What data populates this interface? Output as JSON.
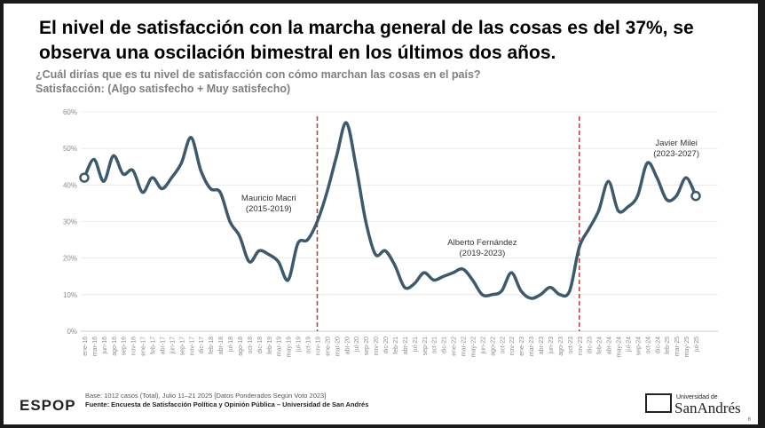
{
  "chart_data": {
    "type": "line",
    "title": [
      "El nivel de satisfacción con la marcha general de las cosas es del 37%, se",
      "observa una oscilación bimestral en los últimos dos años."
    ],
    "subtitle": [
      "¿Cuál dirías que es tu nivel de satisfacción con cómo marchan las cosas en el país?",
      "Satisfacción: (Algo satisfecho + Muy satisfecho)"
    ],
    "categories": [
      "ene-16",
      "mar-16",
      "jun-16",
      "ago-16",
      "sep-16",
      "nov-16",
      "ene-17",
      "feb-17",
      "abr-17",
      "jun-17",
      "sep-17",
      "nov-17",
      "dic-17",
      "feb-18",
      "abr-18",
      "jul-18",
      "ago-18",
      "oct-18",
      "dic-18",
      "feb-19",
      "mar-19",
      "may-19",
      "jul-19",
      "oct-19",
      "nov-19",
      "ene-20",
      "mar-20",
      "abr-20",
      "jul-20",
      "sep-20",
      "nov-20",
      "dic-20",
      "feb-21",
      "abr-21",
      "jul-21",
      "sep-21",
      "oct-21",
      "dic-21",
      "ene-22",
      "mar-22",
      "may-22",
      "jun-22",
      "ago-22",
      "oct-22",
      "nov-22",
      "ene-23",
      "mar-23",
      "abr-23",
      "jun-23",
      "ago-23",
      "oct-23",
      "nov-23",
      "dic-23",
      "feb-24",
      "abr-24",
      "may-24",
      "jul-24",
      "sep-24",
      "oct-24",
      "dic-24",
      "feb-25",
      "mar-25",
      "may-25",
      "jul-25"
    ],
    "series": [
      {
        "name": "Satisfacción",
        "color": "#3d5a6c",
        "values": [
          42,
          47,
          41,
          48,
          43,
          44,
          38,
          42,
          39,
          42,
          46,
          53,
          44,
          39,
          38,
          30,
          26,
          19,
          22,
          21,
          19,
          14,
          24,
          25,
          30,
          38,
          48,
          57,
          45,
          30,
          21,
          22,
          18,
          12,
          13,
          16,
          14,
          15,
          16,
          17,
          14,
          10,
          10,
          11,
          16,
          11,
          9,
          10,
          12,
          10,
          11,
          23,
          28,
          33,
          41,
          33,
          34,
          37,
          46,
          42,
          36,
          37,
          42,
          37
        ]
      }
    ],
    "ylim": [
      0,
      60
    ],
    "yticks": [
      {
        "value": 0,
        "label": "0%"
      },
      {
        "value": 10,
        "label": "10%"
      },
      {
        "value": 20,
        "label": "20%"
      },
      {
        "value": 30,
        "label": "30%"
      },
      {
        "value": 40,
        "label": "40%"
      },
      {
        "value": 50,
        "label": "50%"
      },
      {
        "value": 60,
        "label": "60%"
      }
    ],
    "grid": true,
    "vlines": [
      "nov-19",
      "nov-23"
    ],
    "vline_color": "#c0392b",
    "annotations": [
      [
        "Mauricio Macri",
        "(2015-2019)"
      ],
      [
        "Alberto Fernández",
        "(2019-2023)"
      ],
      [
        "Javier Milei",
        "(2023-2027)"
      ]
    ],
    "footer": [
      "Base: 1012 casos (Total), Julio 11–21 2025 [Datos Ponderados Según Voto 2023]",
      "Fuente: Encuesta de Satisfacción Política y Opinión Pública – Universidad de San Andrés"
    ],
    "logos": [
      "ESPOP",
      "Universidad de",
      "SanAndrés"
    ],
    "page_number": "6"
  }
}
